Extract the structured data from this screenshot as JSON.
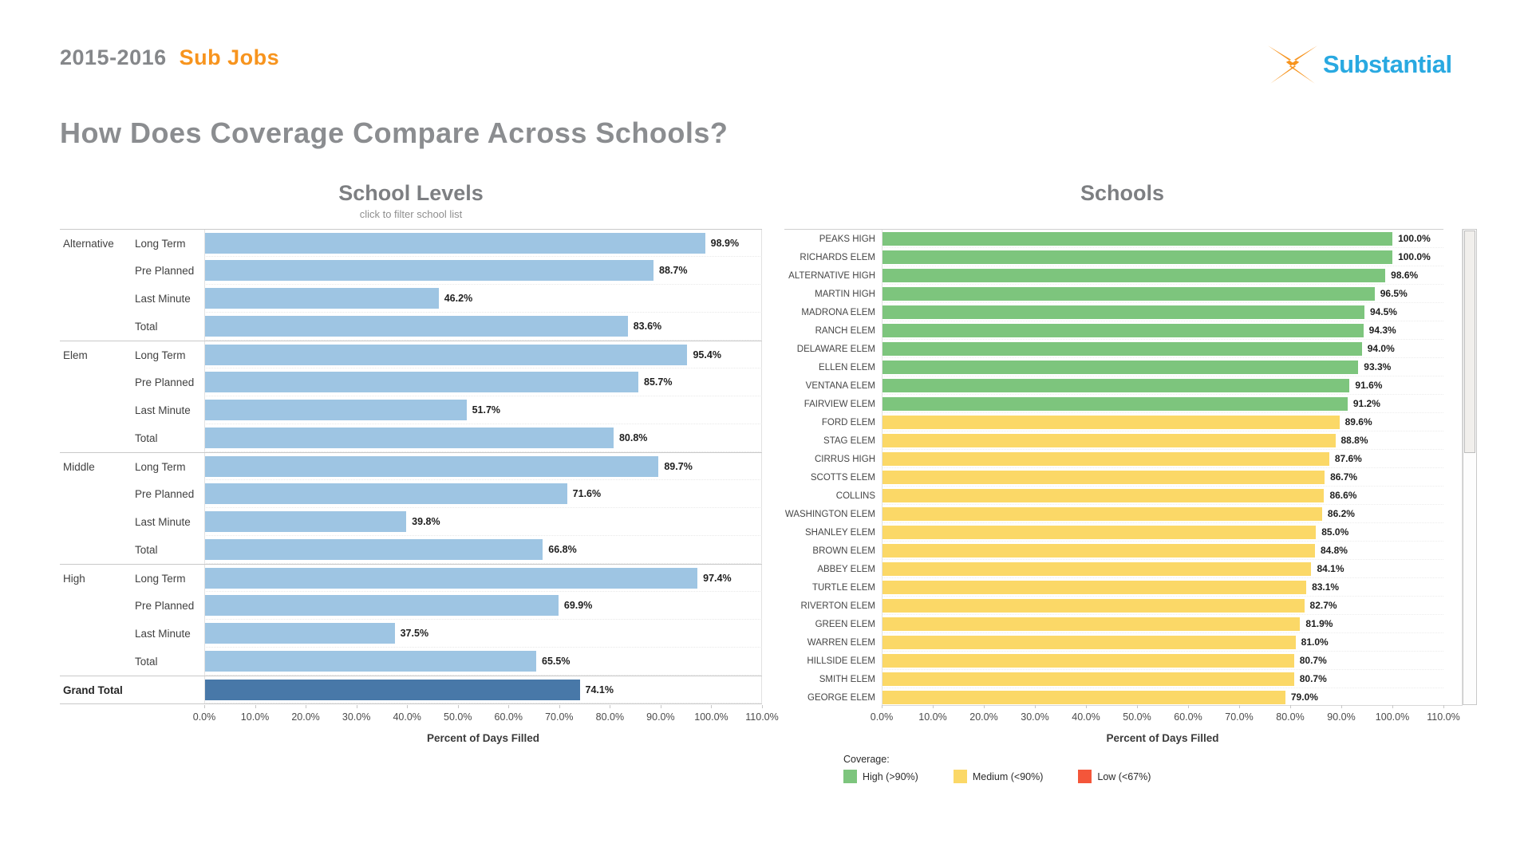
{
  "header": {
    "season": "2015-2016",
    "report_name": "Sub Jobs",
    "page_title": "How Does Coverage Compare Across Schools?",
    "brand": "Substantial"
  },
  "colors": {
    "season_gray": "#85878A",
    "accent_orange": "#F7941E",
    "brand_blue": "#29A9E1",
    "title_gray": "#8B8D90",
    "bar_light_blue": "#9EC5E3",
    "bar_dark_blue": "#4878A8",
    "high_green": "#7DC57D",
    "medium_yellow": "#FBD867",
    "low_red": "#F4563A"
  },
  "chart_data": [
    {
      "type": "bar",
      "title": "School Levels",
      "subtitle": "click to filter school list",
      "xlabel": "Percent of Days Filled",
      "xlim": [
        0,
        110
      ],
      "x_ticks": [
        "0.0%",
        "10.0%",
        "20.0%",
        "30.0%",
        "40.0%",
        "50.0%",
        "60.0%",
        "70.0%",
        "80.0%",
        "90.0%",
        "100.0%",
        "110.0%"
      ],
      "groups": [
        {
          "level": "Alternative",
          "rows": [
            {
              "label": "Long Term",
              "value": 98.9,
              "display": "98.9%"
            },
            {
              "label": "Pre Planned",
              "value": 88.7,
              "display": "88.7%"
            },
            {
              "label": "Last Minute",
              "value": 46.2,
              "display": "46.2%"
            },
            {
              "label": "Total",
              "value": 83.6,
              "display": "83.6%"
            }
          ]
        },
        {
          "level": "Elem",
          "rows": [
            {
              "label": "Long Term",
              "value": 95.4,
              "display": "95.4%"
            },
            {
              "label": "Pre Planned",
              "value": 85.7,
              "display": "85.7%"
            },
            {
              "label": "Last Minute",
              "value": 51.7,
              "display": "51.7%"
            },
            {
              "label": "Total",
              "value": 80.8,
              "display": "80.8%"
            }
          ]
        },
        {
          "level": "Middle",
          "rows": [
            {
              "label": "Long Term",
              "value": 89.7,
              "display": "89.7%"
            },
            {
              "label": "Pre Planned",
              "value": 71.6,
              "display": "71.6%"
            },
            {
              "label": "Last Minute",
              "value": 39.8,
              "display": "39.8%"
            },
            {
              "label": "Total",
              "value": 66.8,
              "display": "66.8%"
            }
          ]
        },
        {
          "level": "High",
          "rows": [
            {
              "label": "Long Term",
              "value": 97.4,
              "display": "97.4%"
            },
            {
              "label": "Pre Planned",
              "value": 69.9,
              "display": "69.9%"
            },
            {
              "label": "Last Minute",
              "value": 37.5,
              "display": "37.5%"
            },
            {
              "label": "Total",
              "value": 65.5,
              "display": "65.5%"
            }
          ]
        }
      ],
      "grand_total": {
        "label": "Grand Total",
        "value": 74.1,
        "display": "74.1%"
      }
    },
    {
      "type": "bar",
      "title": "Schools",
      "xlabel": "Percent of Days Filled",
      "xlim": [
        0,
        110
      ],
      "x_ticks": [
        "0.0%",
        "10.0%",
        "20.0%",
        "30.0%",
        "40.0%",
        "50.0%",
        "60.0%",
        "70.0%",
        "80.0%",
        "90.0%",
        "100.0%",
        "110.0%"
      ],
      "bars": [
        {
          "school": "PEAKS HIGH",
          "value": 100.0,
          "display": "100.0%",
          "band": "high"
        },
        {
          "school": "RICHARDS ELEM",
          "value": 100.0,
          "display": "100.0%",
          "band": "high"
        },
        {
          "school": "ALTERNATIVE HIGH",
          "value": 98.6,
          "display": "98.6%",
          "band": "high"
        },
        {
          "school": "MARTIN HIGH",
          "value": 96.5,
          "display": "96.5%",
          "band": "high"
        },
        {
          "school": "MADRONA ELEM",
          "value": 94.5,
          "display": "94.5%",
          "band": "high"
        },
        {
          "school": "RANCH ELEM",
          "value": 94.3,
          "display": "94.3%",
          "band": "high"
        },
        {
          "school": "DELAWARE ELEM",
          "value": 94.0,
          "display": "94.0%",
          "band": "high"
        },
        {
          "school": "ELLEN ELEM",
          "value": 93.3,
          "display": "93.3%",
          "band": "high"
        },
        {
          "school": "VENTANA ELEM",
          "value": 91.6,
          "display": "91.6%",
          "band": "high"
        },
        {
          "school": "FAIRVIEW ELEM",
          "value": 91.2,
          "display": "91.2%",
          "band": "high"
        },
        {
          "school": "FORD ELEM",
          "value": 89.6,
          "display": "89.6%",
          "band": "medium"
        },
        {
          "school": "STAG ELEM",
          "value": 88.8,
          "display": "88.8%",
          "band": "medium"
        },
        {
          "school": "CIRRUS HIGH",
          "value": 87.6,
          "display": "87.6%",
          "band": "medium"
        },
        {
          "school": "SCOTTS ELEM",
          "value": 86.7,
          "display": "86.7%",
          "band": "medium"
        },
        {
          "school": "COLLINS",
          "value": 86.6,
          "display": "86.6%",
          "band": "medium"
        },
        {
          "school": "WASHINGTON ELEM",
          "value": 86.2,
          "display": "86.2%",
          "band": "medium"
        },
        {
          "school": "SHANLEY ELEM",
          "value": 85.0,
          "display": "85.0%",
          "band": "medium"
        },
        {
          "school": "BROWN ELEM",
          "value": 84.8,
          "display": "84.8%",
          "band": "medium"
        },
        {
          "school": "ABBEY ELEM",
          "value": 84.1,
          "display": "84.1%",
          "band": "medium"
        },
        {
          "school": "TURTLE ELEM",
          "value": 83.1,
          "display": "83.1%",
          "band": "medium"
        },
        {
          "school": "RIVERTON ELEM",
          "value": 82.7,
          "display": "82.7%",
          "band": "medium"
        },
        {
          "school": "GREEN ELEM",
          "value": 81.9,
          "display": "81.9%",
          "band": "medium"
        },
        {
          "school": "WARREN ELEM",
          "value": 81.0,
          "display": "81.0%",
          "band": "medium"
        },
        {
          "school": "HILLSIDE ELEM",
          "value": 80.7,
          "display": "80.7%",
          "band": "medium"
        },
        {
          "school": "SMITH ELEM",
          "value": 80.7,
          "display": "80.7%",
          "band": "medium"
        },
        {
          "school": "GEORGE ELEM",
          "value": 79.0,
          "display": "79.0%",
          "band": "medium"
        }
      ],
      "legend": {
        "title": "Coverage:",
        "position": "bottom-left",
        "items": [
          {
            "label": "High (>90%)",
            "band": "high"
          },
          {
            "label": "Medium (<90%)",
            "band": "medium"
          },
          {
            "label": "Low (<67%)",
            "band": "low"
          }
        ]
      }
    }
  ]
}
